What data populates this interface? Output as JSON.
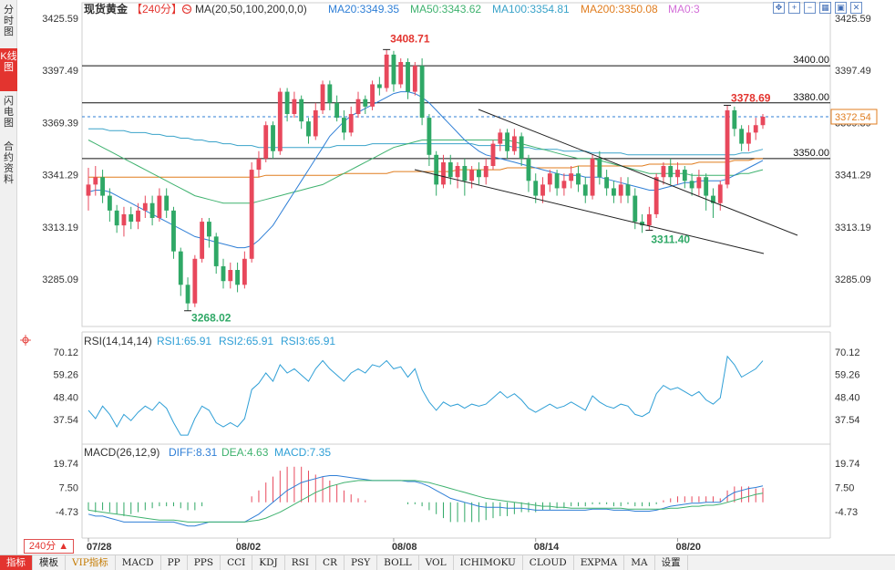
{
  "left_tabs": [
    "分时图",
    "K线图",
    "闪电图",
    "合约资料"
  ],
  "active_left_tab": 1,
  "header": {
    "instrument": "现货黄金",
    "period": "【240分】",
    "ma_title": "MA(20,50,100,200,0,0)",
    "ma20": "MA20:3349.35",
    "ma50": "MA50:3343.62",
    "ma100": "MA100:3354.81",
    "ma200": "MA200:3350.08",
    "ma0": "MA0:3"
  },
  "tool_icons": [
    "move-icon",
    "zoom-in-icon",
    "zoom-out-icon",
    "grid-icon",
    "expand-icon",
    "close-icon"
  ],
  "tool_icon_glyphs": [
    "✥",
    "+",
    "−",
    "▦",
    "▣",
    "✕"
  ],
  "price_axis": [
    "3425.59",
    "3397.49",
    "3369.39",
    "3341.29",
    "3313.19",
    "3285.09"
  ],
  "current_price": "3372.54",
  "horizontal_levels": [
    {
      "label": "3400.00",
      "value": 3400
    },
    {
      "label": "3380.00",
      "value": 3380
    },
    {
      "label": "3350.00",
      "value": 3350
    }
  ],
  "annotations": {
    "high": "3408.71",
    "low": "3268.02",
    "recent_high": "3378.69",
    "recent_low": "3311.40"
  },
  "rsi": {
    "title": "RSI(14,14,14)",
    "rsi1": "RSI1:65.91",
    "rsi2": "RSI2:65.91",
    "rsi3": "RSI3:65.91",
    "axis": [
      "70.12",
      "59.26",
      "48.40",
      "37.54"
    ]
  },
  "macd": {
    "title": "MACD(26,12,9)",
    "diff": "DIFF:8.31",
    "dea": "DEA:4.63",
    "macd": "MACD:7.35",
    "axis": [
      "19.74",
      "7.50",
      "-4.73"
    ]
  },
  "dates": [
    "07/28",
    "08/02",
    "08/08",
    "08/14",
    "08/20"
  ],
  "period_button": "240分 ▲",
  "bottom_tabs": [
    "指标",
    "模板",
    "VIP指标",
    "MACD",
    "PP",
    "PPS",
    "CCI",
    "KDJ",
    "RSI",
    "CR",
    "PSY",
    "BOLL",
    "VOL",
    "ICHIMOKU",
    "CLOUD",
    "EXPMA",
    "MA",
    "设置"
  ],
  "active_bottom_tab": 0,
  "colors": {
    "up": "#e8485c",
    "down": "#2fa866",
    "ma20": "#2f7fd6",
    "ma50": "#3fb26f",
    "ma100": "#3aa3c9",
    "ma200": "#e07d1f",
    "ma0": "#d36fd8",
    "high_label": "#e3342f",
    "low_label": "#2fa866"
  },
  "chart_data": {
    "type": "candlestick",
    "series_range": {
      "start": 3300,
      "end": 3372.54,
      "high": 3408.71,
      "low": 3268.02
    },
    "ylim": [
      3285.09,
      3425.59
    ],
    "candles": [
      [
        3330,
        3336,
        3322,
        3345
      ],
      [
        3336,
        3340,
        3330,
        3346
      ],
      [
        3340,
        3330,
        3326,
        3344
      ],
      [
        3330,
        3322,
        3316,
        3334
      ],
      [
        3322,
        3314,
        3310,
        3325
      ],
      [
        3314,
        3320,
        3308,
        3324
      ],
      [
        3320,
        3316,
        3312,
        3324
      ],
      [
        3316,
        3322,
        3312,
        3326
      ],
      [
        3322,
        3326,
        3318,
        3330
      ],
      [
        3326,
        3318,
        3314,
        3330
      ],
      [
        3318,
        3330,
        3316,
        3334
      ],
      [
        3330,
        3322,
        3318,
        3334
      ],
      [
        3322,
        3300,
        3296,
        3324
      ],
      [
        3300,
        3282,
        3276,
        3302
      ],
      [
        3282,
        3272,
        3268.02,
        3286
      ],
      [
        3272,
        3296,
        3270,
        3298
      ],
      [
        3296,
        3316,
        3294,
        3318
      ],
      [
        3316,
        3308,
        3302,
        3318
      ],
      [
        3308,
        3292,
        3288,
        3310
      ],
      [
        3292,
        3284,
        3280,
        3296
      ],
      [
        3284,
        3290,
        3280,
        3294
      ],
      [
        3290,
        3282,
        3278,
        3294
      ],
      [
        3282,
        3296,
        3280,
        3300
      ],
      [
        3296,
        3344,
        3294,
        3348
      ],
      [
        3344,
        3350,
        3340,
        3354
      ],
      [
        3350,
        3368,
        3348,
        3370
      ],
      [
        3368,
        3354,
        3350,
        3370
      ],
      [
        3354,
        3386,
        3352,
        3388
      ],
      [
        3386,
        3374,
        3370,
        3388
      ],
      [
        3374,
        3382,
        3372,
        3386
      ],
      [
        3382,
        3370,
        3366,
        3384
      ],
      [
        3370,
        3362,
        3358,
        3372
      ],
      [
        3362,
        3376,
        3360,
        3380
      ],
      [
        3376,
        3390,
        3374,
        3392
      ],
      [
        3390,
        3380,
        3376,
        3392
      ],
      [
        3380,
        3372,
        3370,
        3384
      ],
      [
        3372,
        3364,
        3360,
        3376
      ],
      [
        3364,
        3374,
        3362,
        3378
      ],
      [
        3374,
        3382,
        3372,
        3386
      ],
      [
        3382,
        3378,
        3374,
        3384
      ],
      [
        3378,
        3390,
        3376,
        3392
      ],
      [
        3390,
        3388,
        3384,
        3394
      ],
      [
        3388,
        3406,
        3386,
        3408.71
      ],
      [
        3406,
        3390,
        3386,
        3408
      ],
      [
        3390,
        3402,
        3388,
        3404
      ],
      [
        3402,
        3386,
        3382,
        3404
      ],
      [
        3386,
        3400,
        3384,
        3402
      ],
      [
        3400,
        3372,
        3368,
        3404
      ],
      [
        3372,
        3352,
        3346,
        3374
      ],
      [
        3352,
        3336,
        3330,
        3354
      ],
      [
        3336,
        3348,
        3334,
        3352
      ],
      [
        3348,
        3340,
        3336,
        3352
      ],
      [
        3340,
        3346,
        3334,
        3348
      ],
      [
        3346,
        3338,
        3330,
        3350
      ],
      [
        3338,
        3344,
        3334,
        3346
      ],
      [
        3344,
        3340,
        3336,
        3348
      ],
      [
        3340,
        3346,
        3336,
        3350
      ],
      [
        3346,
        3358,
        3344,
        3360
      ],
      [
        3358,
        3364,
        3354,
        3366
      ],
      [
        3364,
        3354,
        3350,
        3366
      ],
      [
        3354,
        3362,
        3352,
        3366
      ],
      [
        3362,
        3350,
        3346,
        3364
      ],
      [
        3350,
        3338,
        3332,
        3352
      ],
      [
        3338,
        3330,
        3326,
        3342
      ],
      [
        3330,
        3336,
        3326,
        3340
      ],
      [
        3336,
        3342,
        3332,
        3344
      ],
      [
        3342,
        3334,
        3330,
        3344
      ],
      [
        3334,
        3338,
        3330,
        3342
      ],
      [
        3338,
        3342,
        3334,
        3346
      ],
      [
        3342,
        3336,
        3332,
        3346
      ],
      [
        3336,
        3330,
        3326,
        3340
      ],
      [
        3330,
        3350,
        3328,
        3352
      ],
      [
        3350,
        3340,
        3336,
        3354
      ],
      [
        3340,
        3334,
        3330,
        3344
      ],
      [
        3334,
        3330,
        3326,
        3338
      ],
      [
        3330,
        3336,
        3326,
        3340
      ],
      [
        3336,
        3330,
        3326,
        3340
      ],
      [
        3330,
        3316,
        3312,
        3334
      ],
      [
        3316,
        3314,
        3310,
        3320
      ],
      [
        3314,
        3320,
        3311.4,
        3324
      ],
      [
        3320,
        3340,
        3318,
        3342
      ],
      [
        3340,
        3346,
        3336,
        3348
      ],
      [
        3346,
        3340,
        3336,
        3350
      ],
      [
        3340,
        3344,
        3336,
        3348
      ],
      [
        3344,
        3338,
        3334,
        3346
      ],
      [
        3338,
        3334,
        3330,
        3342
      ],
      [
        3334,
        3340,
        3330,
        3344
      ],
      [
        3340,
        3330,
        3322,
        3342
      ],
      [
        3330,
        3326,
        3318,
        3334
      ],
      [
        3326,
        3336,
        3322,
        3338
      ],
      [
        3336,
        3376,
        3334,
        3378.69
      ],
      [
        3376,
        3366,
        3362,
        3378
      ],
      [
        3366,
        3358,
        3354,
        3368
      ],
      [
        3358,
        3364,
        3354,
        3368
      ],
      [
        3364,
        3368,
        3360,
        3372
      ],
      [
        3368,
        3372.54,
        3366,
        3374
      ]
    ],
    "ma20": [
      3332,
      3333,
      3333,
      3332,
      3330,
      3328,
      3326,
      3324,
      3322,
      3320,
      3318,
      3316,
      3314,
      3312,
      3310,
      3308,
      3307,
      3306,
      3305,
      3304,
      3303,
      3302,
      3302,
      3303,
      3306,
      3310,
      3314,
      3320,
      3326,
      3332,
      3338,
      3344,
      3350,
      3356,
      3362,
      3366,
      3370,
      3373,
      3375,
      3377,
      3379,
      3381,
      3383,
      3385,
      3386,
      3386,
      3385,
      3383,
      3380,
      3376,
      3372,
      3368,
      3364,
      3360,
      3357,
      3354,
      3352,
      3351,
      3350,
      3349,
      3348,
      3347,
      3346,
      3345,
      3344,
      3343,
      3342,
      3341,
      3341,
      3341,
      3340,
      3340,
      3340,
      3339,
      3338,
      3337,
      3336,
      3335,
      3334,
      3333,
      3333,
      3334,
      3335,
      3336,
      3337,
      3337,
      3338,
      3338,
      3338,
      3338,
      3339,
      3341,
      3343,
      3345,
      3347,
      3349
    ],
    "ma50": [
      3360,
      3358,
      3356,
      3354,
      3352,
      3350,
      3348,
      3346,
      3344,
      3342,
      3340,
      3338,
      3336,
      3334,
      3332,
      3330,
      3329,
      3328,
      3327,
      3326,
      3326,
      3326,
      3326,
      3326,
      3327,
      3328,
      3329,
      3330,
      3331,
      3332,
      3333,
      3334,
      3335,
      3336,
      3338,
      3340,
      3342,
      3344,
      3346,
      3348,
      3350,
      3352,
      3354,
      3356,
      3357,
      3358,
      3359,
      3360,
      3360,
      3360,
      3360,
      3360,
      3360,
      3360,
      3360,
      3360,
      3360,
      3360,
      3360,
      3360,
      3359,
      3358,
      3357,
      3356,
      3355,
      3354,
      3353,
      3352,
      3351,
      3350,
      3350,
      3350,
      3349,
      3348,
      3347,
      3346,
      3345,
      3344,
      3343,
      3342,
      3342,
      3342,
      3342,
      3342,
      3342,
      3341,
      3341,
      3341,
      3341,
      3341,
      3341,
      3341,
      3342,
      3342,
      3343,
      3344
    ],
    "ma100": [
      3366,
      3366,
      3366,
      3365,
      3365,
      3365,
      3364,
      3364,
      3364,
      3363,
      3363,
      3362,
      3362,
      3361,
      3361,
      3360,
      3360,
      3359,
      3359,
      3358,
      3358,
      3357,
      3357,
      3357,
      3356,
      3356,
      3356,
      3356,
      3356,
      3356,
      3356,
      3356,
      3356,
      3356,
      3356,
      3357,
      3357,
      3357,
      3357,
      3357,
      3358,
      3358,
      3358,
      3358,
      3358,
      3358,
      3358,
      3358,
      3358,
      3358,
      3358,
      3358,
      3358,
      3358,
      3358,
      3357,
      3357,
      3357,
      3357,
      3357,
      3356,
      3356,
      3356,
      3355,
      3355,
      3355,
      3355,
      3354,
      3354,
      3354,
      3354,
      3353,
      3353,
      3353,
      3353,
      3353,
      3352,
      3352,
      3352,
      3352,
      3352,
      3352,
      3352,
      3352,
      3352,
      3352,
      3352,
      3352,
      3352,
      3352,
      3352,
      3352,
      3353,
      3353,
      3354,
      3355
    ],
    "ma200": [
      3340,
      3340,
      3340,
      3340,
      3340,
      3340,
      3340,
      3340,
      3340,
      3340,
      3340,
      3340,
      3340,
      3340,
      3340,
      3340,
      3340,
      3340,
      3340,
      3340,
      3340,
      3340,
      3340,
      3340,
      3340,
      3341,
      3341,
      3341,
      3341,
      3341,
      3341,
      3341,
      3341,
      3341,
      3341,
      3341,
      3342,
      3342,
      3342,
      3342,
      3342,
      3342,
      3342,
      3343,
      3343,
      3343,
      3343,
      3343,
      3343,
      3343,
      3343,
      3343,
      3344,
      3344,
      3344,
      3344,
      3344,
      3344,
      3344,
      3345,
      3345,
      3345,
      3345,
      3345,
      3345,
      3345,
      3345,
      3345,
      3345,
      3346,
      3346,
      3346,
      3346,
      3346,
      3346,
      3346,
      3346,
      3346,
      3346,
      3347,
      3347,
      3347,
      3347,
      3347,
      3347,
      3347,
      3348,
      3348,
      3348,
      3348,
      3348,
      3349,
      3349,
      3349,
      3350,
      3350
    ],
    "rsi_ylim": [
      30,
      75
    ],
    "rsi": [
      42,
      38,
      44,
      40,
      34,
      40,
      37,
      41,
      44,
      42,
      46,
      43,
      36,
      30,
      30,
      38,
      44,
      42,
      36,
      34,
      36,
      34,
      38,
      52,
      55,
      60,
      56,
      64,
      60,
      62,
      59,
      56,
      62,
      66,
      62,
      59,
      56,
      60,
      62,
      60,
      64,
      63,
      66,
      62,
      63,
      58,
      62,
      52,
      46,
      42,
      46,
      44,
      45,
      43,
      45,
      44,
      45,
      48,
      51,
      48,
      50,
      47,
      43,
      41,
      43,
      45,
      43,
      44,
      46,
      44,
      42,
      49,
      46,
      44,
      43,
      45,
      44,
      40,
      39,
      41,
      50,
      54,
      52,
      53,
      51,
      49,
      51,
      47,
      45,
      48,
      68,
      64,
      58,
      60,
      62,
      65.91
    ],
    "macd_ylim": [
      -12,
      24
    ],
    "diff": [
      -6,
      -7,
      -7,
      -8,
      -9,
      -10,
      -10,
      -10,
      -10,
      -10,
      -10,
      -10,
      -10,
      -11,
      -12,
      -12,
      -11,
      -10,
      -10,
      -10,
      -10,
      -10,
      -10,
      -8,
      -6,
      -3,
      0,
      3,
      6,
      8,
      10,
      11,
      12,
      13,
      13.5,
      13.5,
      13,
      12.5,
      12,
      11.5,
      11,
      11,
      11,
      11,
      11,
      10.5,
      10.5,
      9.5,
      8,
      6,
      4,
      2,
      1,
      0,
      -1,
      -2,
      -2.5,
      -2.5,
      -2.5,
      -3,
      -3,
      -3,
      -3.5,
      -4,
      -4,
      -4,
      -4,
      -4,
      -4,
      -4,
      -4,
      -3.5,
      -3.5,
      -3.5,
      -4,
      -4,
      -4,
      -4.5,
      -4.5,
      -4.5,
      -4,
      -3,
      -2,
      -1.5,
      -1,
      -0.5,
      -0.5,
      0,
      0,
      0,
      3,
      5,
      6,
      7,
      7.5,
      8.31
    ],
    "dea": [
      -4,
      -4.5,
      -5,
      -5.5,
      -6,
      -6.5,
      -7,
      -7.5,
      -8,
      -8.5,
      -9,
      -9,
      -9,
      -9.5,
      -10,
      -10,
      -10,
      -10,
      -10,
      -10,
      -10,
      -10,
      -10,
      -9.5,
      -9,
      -8,
      -6.5,
      -5,
      -3,
      -1,
      1,
      3,
      5,
      6.5,
      8,
      9,
      10,
      10.5,
      11,
      11,
      11,
      11,
      11,
      11,
      11,
      11,
      11,
      10.5,
      10,
      9,
      8,
      7,
      6,
      5,
      4,
      3,
      2,
      1.5,
      1,
      0.5,
      0,
      -0.5,
      -1,
      -1.5,
      -2,
      -2,
      -2.5,
      -2.5,
      -3,
      -3,
      -3,
      -3,
      -3,
      -3,
      -3,
      -3,
      -3.5,
      -3.5,
      -3.5,
      -3.5,
      -3.5,
      -3.5,
      -3,
      -3,
      -2.5,
      -2,
      -2,
      -1.5,
      -1.5,
      -1,
      0,
      1,
      2,
      3,
      4,
      4.63
    ]
  }
}
